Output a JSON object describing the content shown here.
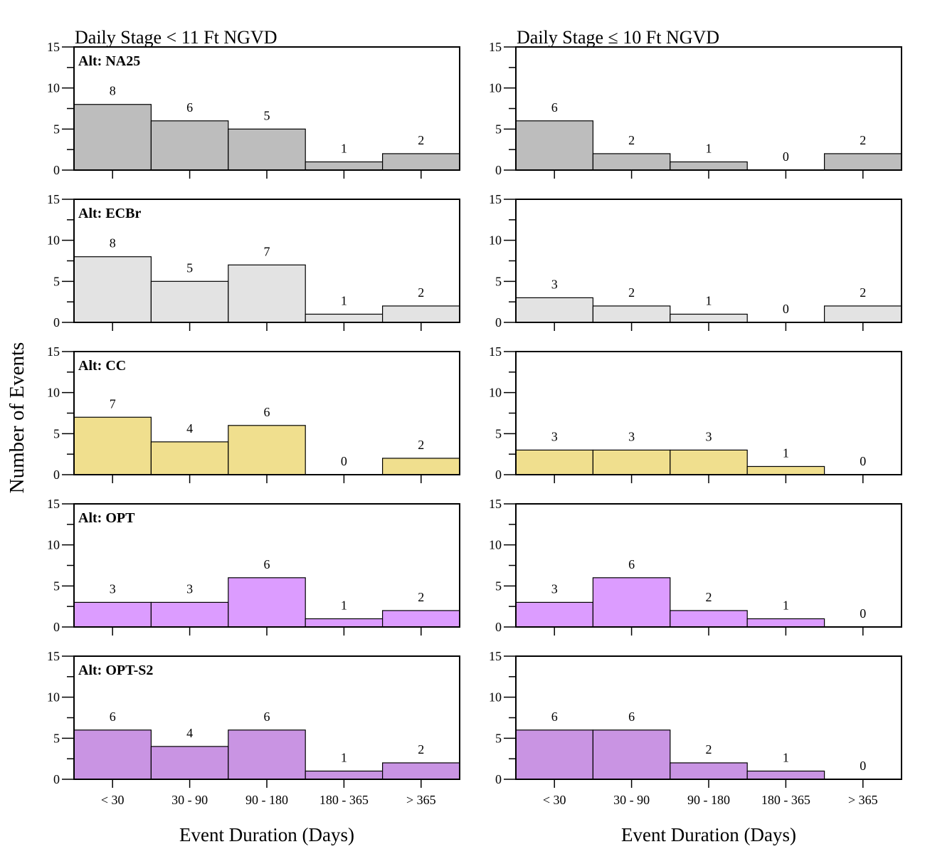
{
  "chart_data": {
    "type": "bar",
    "y_axis_title": "Number of Events",
    "categories": [
      "< 30",
      "30 - 90",
      "90 - 180",
      "180 - 365",
      "> 365"
    ],
    "ylim": [
      0,
      15
    ],
    "yticks": [
      0,
      5,
      10,
      15
    ],
    "columns": [
      {
        "title": "Daily Stage < 11 Ft NGVD",
        "xlabel": "Event Duration (Days)"
      },
      {
        "title": "Daily Stage ≤ 10 Ft NGVD",
        "xlabel": "Event Duration (Days)"
      }
    ],
    "rows": [
      {
        "label": "Alt: NA25",
        "color": "#bdbdbd",
        "values": [
          [
            8,
            6,
            5,
            1,
            2
          ],
          [
            6,
            2,
            1,
            0,
            2
          ]
        ]
      },
      {
        "label": "Alt: ECBr",
        "color": "#e3e3e3",
        "values": [
          [
            8,
            5,
            7,
            1,
            2
          ],
          [
            3,
            2,
            1,
            0,
            2
          ]
        ]
      },
      {
        "label": "Alt: CC",
        "color": "#f0df8e",
        "values": [
          [
            7,
            4,
            6,
            0,
            2
          ],
          [
            3,
            3,
            3,
            1,
            0
          ]
        ]
      },
      {
        "label": "Alt: OPT",
        "color": "#dc9cff",
        "values": [
          [
            3,
            3,
            6,
            1,
            2
          ],
          [
            3,
            6,
            2,
            1,
            0
          ]
        ]
      },
      {
        "label": "Alt: OPT-S2",
        "color": "#c994e3",
        "values": [
          [
            6,
            4,
            6,
            1,
            2
          ],
          [
            6,
            6,
            2,
            1,
            0
          ]
        ]
      }
    ]
  }
}
